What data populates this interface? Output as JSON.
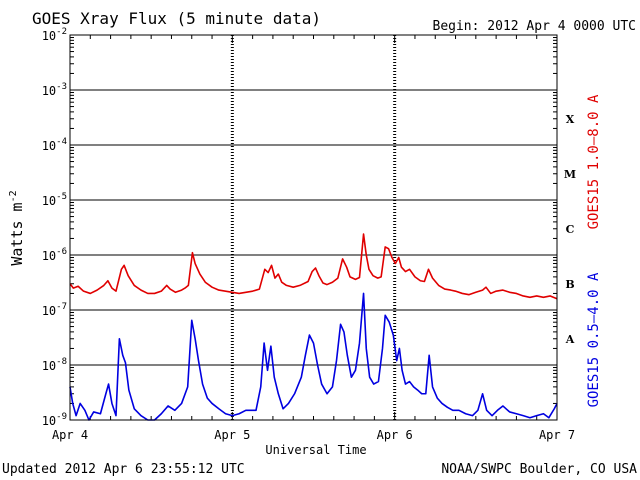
{
  "chart_data": {
    "type": "line",
    "title": "GOES Xray Flux (5 minute data)",
    "begin_label": "Begin:  2012 Apr 4 0000 UTC",
    "ylabel": "Watts m",
    "ylabel_superscript": "-2",
    "xlabel": "Universal Time",
    "yscale": "log",
    "ylim": [
      1e-09,
      0.01
    ],
    "xlim": [
      0,
      72
    ],
    "x_unit": "hours since 2012 Apr 4 0000 UTC",
    "y_ticks": [
      {
        "value": 0.01,
        "base": "10",
        "exp": "-2"
      },
      {
        "value": 0.001,
        "base": "10",
        "exp": "-3"
      },
      {
        "value": 0.0001,
        "base": "10",
        "exp": "-4"
      },
      {
        "value": 1e-05,
        "base": "10",
        "exp": "-5"
      },
      {
        "value": 1e-06,
        "base": "10",
        "exp": "-6"
      },
      {
        "value": 1e-07,
        "base": "10",
        "exp": "-7"
      },
      {
        "value": 1e-08,
        "base": "10",
        "exp": "-8"
      },
      {
        "value": 1e-09,
        "base": "10",
        "exp": "-9"
      }
    ],
    "x_ticks": [
      {
        "value": 0,
        "label": "Apr 4"
      },
      {
        "value": 24,
        "label": "Apr 5"
      },
      {
        "value": 48,
        "label": "Apr 6"
      },
      {
        "value": 72,
        "label": "Apr 7"
      }
    ],
    "flare_classes": [
      {
        "label": "X",
        "value": 0.0003
      },
      {
        "label": "M",
        "value": 3e-05
      },
      {
        "label": "C",
        "value": 3e-06
      },
      {
        "label": "B",
        "value": 3e-07
      },
      {
        "label": "A",
        "value": 3e-08
      }
    ],
    "grid": true,
    "series": [
      {
        "name": "GOES15 1.0–8.0 A",
        "color": "#e00000",
        "points": [
          [
            0,
            3e-07
          ],
          [
            0.5,
            2.5e-07
          ],
          [
            1.2,
            2.7e-07
          ],
          [
            2,
            2.2e-07
          ],
          [
            3,
            2e-07
          ],
          [
            4,
            2.3e-07
          ],
          [
            5,
            2.8e-07
          ],
          [
            5.6,
            3.4e-07
          ],
          [
            6.2,
            2.5e-07
          ],
          [
            6.8,
            2.2e-07
          ],
          [
            7.6,
            5.5e-07
          ],
          [
            8,
            6.5e-07
          ],
          [
            8.6,
            4.2e-07
          ],
          [
            9.5,
            2.8e-07
          ],
          [
            10.5,
            2.3e-07
          ],
          [
            11.5,
            2e-07
          ],
          [
            12.5,
            2e-07
          ],
          [
            13.5,
            2.2e-07
          ],
          [
            14.3,
            2.8e-07
          ],
          [
            14.8,
            2.4e-07
          ],
          [
            15.6,
            2.1e-07
          ],
          [
            16.5,
            2.3e-07
          ],
          [
            17,
            2.5e-07
          ],
          [
            17.5,
            2.8e-07
          ],
          [
            18.1,
            1.1e-06
          ],
          [
            18.5,
            7e-07
          ],
          [
            19.2,
            4.5e-07
          ],
          [
            20,
            3.2e-07
          ],
          [
            21,
            2.6e-07
          ],
          [
            22,
            2.3e-07
          ],
          [
            23,
            2.2e-07
          ],
          [
            24,
            2.1e-07
          ],
          [
            25,
            2e-07
          ],
          [
            26,
            2.1e-07
          ],
          [
            27,
            2.2e-07
          ],
          [
            28,
            2.4e-07
          ],
          [
            28.8,
            5.5e-07
          ],
          [
            29.3,
            4.8e-07
          ],
          [
            29.8,
            6.5e-07
          ],
          [
            30.3,
            3.8e-07
          ],
          [
            30.8,
            4.5e-07
          ],
          [
            31.3,
            3.2e-07
          ],
          [
            32,
            2.8e-07
          ],
          [
            33,
            2.6e-07
          ],
          [
            34,
            2.8e-07
          ],
          [
            35.2,
            3.3e-07
          ],
          [
            35.8,
            5e-07
          ],
          [
            36.3,
            5.8e-07
          ],
          [
            36.8,
            4.2e-07
          ],
          [
            37.4,
            3.1e-07
          ],
          [
            38,
            2.9e-07
          ],
          [
            38.8,
            3.2e-07
          ],
          [
            39.6,
            3.8e-07
          ],
          [
            40.3,
            8.5e-07
          ],
          [
            40.9,
            6e-07
          ],
          [
            41.4,
            4e-07
          ],
          [
            42.2,
            3.6e-07
          ],
          [
            42.8,
            3.9e-07
          ],
          [
            43.4,
            2.4e-06
          ],
          [
            43.8,
            1e-06
          ],
          [
            44.2,
            5.5e-07
          ],
          [
            44.8,
            4.2e-07
          ],
          [
            45.5,
            3.8e-07
          ],
          [
            46,
            4e-07
          ],
          [
            46.6,
            1.4e-06
          ],
          [
            47.1,
            1.3e-06
          ],
          [
            47.6,
            9e-07
          ],
          [
            48.1,
            7e-07
          ],
          [
            48.6,
            9e-07
          ],
          [
            49,
            6e-07
          ],
          [
            49.6,
            5e-07
          ],
          [
            50.2,
            5.5e-07
          ],
          [
            51,
            4e-07
          ],
          [
            51.8,
            3.4e-07
          ],
          [
            52.4,
            3.3e-07
          ],
          [
            53,
            5.5e-07
          ],
          [
            53.6,
            3.8e-07
          ],
          [
            54.5,
            2.8e-07
          ],
          [
            55.4,
            2.4e-07
          ],
          [
            56.3,
            2.3e-07
          ],
          [
            57,
            2.2e-07
          ],
          [
            58,
            2e-07
          ],
          [
            59,
            1.9e-07
          ],
          [
            60,
            2.1e-07
          ],
          [
            61,
            2.3e-07
          ],
          [
            61.5,
            2.6e-07
          ],
          [
            62.2,
            2e-07
          ],
          [
            63,
            2.2e-07
          ],
          [
            64,
            2.3e-07
          ],
          [
            65,
            2.1e-07
          ],
          [
            66,
            2e-07
          ],
          [
            67,
            1.8e-07
          ],
          [
            68,
            1.7e-07
          ],
          [
            69,
            1.8e-07
          ],
          [
            70,
            1.7e-07
          ],
          [
            71,
            1.8e-07
          ],
          [
            72,
            1.6e-07
          ]
        ]
      },
      {
        "name": "GOES15 0.5–4.0 A",
        "color": "#0000e0",
        "points": [
          [
            0,
            4e-09
          ],
          [
            0.4,
            2e-09
          ],
          [
            0.9,
            1.2e-09
          ],
          [
            1.5,
            2e-09
          ],
          [
            2.2,
            1.5e-09
          ],
          [
            2.8,
            1e-09
          ],
          [
            3.5,
            1.4e-09
          ],
          [
            4.5,
            1.3e-09
          ],
          [
            5.3,
            3e-09
          ],
          [
            5.7,
            4.5e-09
          ],
          [
            6.2,
            2e-09
          ],
          [
            6.8,
            1.2e-09
          ],
          [
            7.3,
            3e-08
          ],
          [
            7.8,
            1.5e-08
          ],
          [
            8.2,
            1.1e-08
          ],
          [
            8.7,
            3.5e-09
          ],
          [
            9.5,
            1.6e-09
          ],
          [
            10.5,
            1.2e-09
          ],
          [
            11.5,
            1e-09
          ],
          [
            12.5,
            1e-09
          ],
          [
            13.5,
            1.3e-09
          ],
          [
            14.5,
            1.8e-09
          ],
          [
            15.5,
            1.5e-09
          ],
          [
            16.5,
            2e-09
          ],
          [
            17.4,
            4e-09
          ],
          [
            18,
            6.5e-08
          ],
          [
            18.5,
            3e-08
          ],
          [
            19,
            1.2e-08
          ],
          [
            19.6,
            4.5e-09
          ],
          [
            20.3,
            2.5e-09
          ],
          [
            21,
            2e-09
          ],
          [
            22,
            1.6e-09
          ],
          [
            23,
            1.3e-09
          ],
          [
            24,
            1.2e-09
          ],
          [
            25,
            1.3e-09
          ],
          [
            26,
            1.5e-09
          ],
          [
            27.5,
            1.5e-09
          ],
          [
            28.2,
            4e-09
          ],
          [
            28.7,
            2.5e-08
          ],
          [
            29.2,
            8e-09
          ],
          [
            29.7,
            2.2e-08
          ],
          [
            30.2,
            6e-09
          ],
          [
            30.8,
            3e-09
          ],
          [
            31.5,
            1.6e-09
          ],
          [
            32.3,
            2e-09
          ],
          [
            33.2,
            3e-09
          ],
          [
            34.2,
            6e-09
          ],
          [
            34.8,
            1.5e-08
          ],
          [
            35.4,
            3.5e-08
          ],
          [
            36,
            2.5e-08
          ],
          [
            36.6,
            1e-08
          ],
          [
            37.2,
            4.5e-09
          ],
          [
            38,
            3e-09
          ],
          [
            38.8,
            4e-09
          ],
          [
            39.4,
            1.2e-08
          ],
          [
            40,
            5.5e-08
          ],
          [
            40.5,
            4e-08
          ],
          [
            41,
            1.5e-08
          ],
          [
            41.6,
            6e-09
          ],
          [
            42.2,
            8e-09
          ],
          [
            42.8,
            2.5e-08
          ],
          [
            43.4,
            2e-07
          ],
          [
            43.8,
            2e-08
          ],
          [
            44.3,
            6e-09
          ],
          [
            44.9,
            4.5e-09
          ],
          [
            45.6,
            5e-09
          ],
          [
            46.2,
            2e-08
          ],
          [
            46.6,
            8e-08
          ],
          [
            47.2,
            6e-08
          ],
          [
            47.8,
            3.5e-08
          ],
          [
            48.3,
            1.2e-08
          ],
          [
            48.7,
            2e-08
          ],
          [
            49.1,
            8e-09
          ],
          [
            49.6,
            4.5e-09
          ],
          [
            50.2,
            5e-09
          ],
          [
            50.8,
            4e-09
          ],
          [
            51.4,
            3.5e-09
          ],
          [
            52,
            3e-09
          ],
          [
            52.6,
            3e-09
          ],
          [
            53.1,
            1.5e-08
          ],
          [
            53.6,
            4e-09
          ],
          [
            54.3,
            2.5e-09
          ],
          [
            55,
            2e-09
          ],
          [
            55.8,
            1.7e-09
          ],
          [
            56.6,
            1.5e-09
          ],
          [
            57.5,
            1.5e-09
          ],
          [
            58.5,
            1.3e-09
          ],
          [
            59.5,
            1.2e-09
          ],
          [
            60.3,
            1.5e-09
          ],
          [
            61,
            3e-09
          ],
          [
            61.6,
            1.5e-09
          ],
          [
            62.4,
            1.2e-09
          ],
          [
            63.2,
            1.5e-09
          ],
          [
            64,
            1.8e-09
          ],
          [
            65,
            1.4e-09
          ],
          [
            66,
            1.3e-09
          ],
          [
            67,
            1.2e-09
          ],
          [
            68,
            1.1e-09
          ],
          [
            69,
            1.2e-09
          ],
          [
            70,
            1.3e-09
          ],
          [
            70.8,
            1.1e-09
          ],
          [
            71.6,
            1.6e-09
          ],
          [
            72,
            2e-09
          ]
        ]
      }
    ]
  },
  "footer": {
    "updated": "Updated 2012 Apr  6 23:55:12 UTC",
    "credit": "NOAA/SWPC Boulder, CO USA"
  }
}
